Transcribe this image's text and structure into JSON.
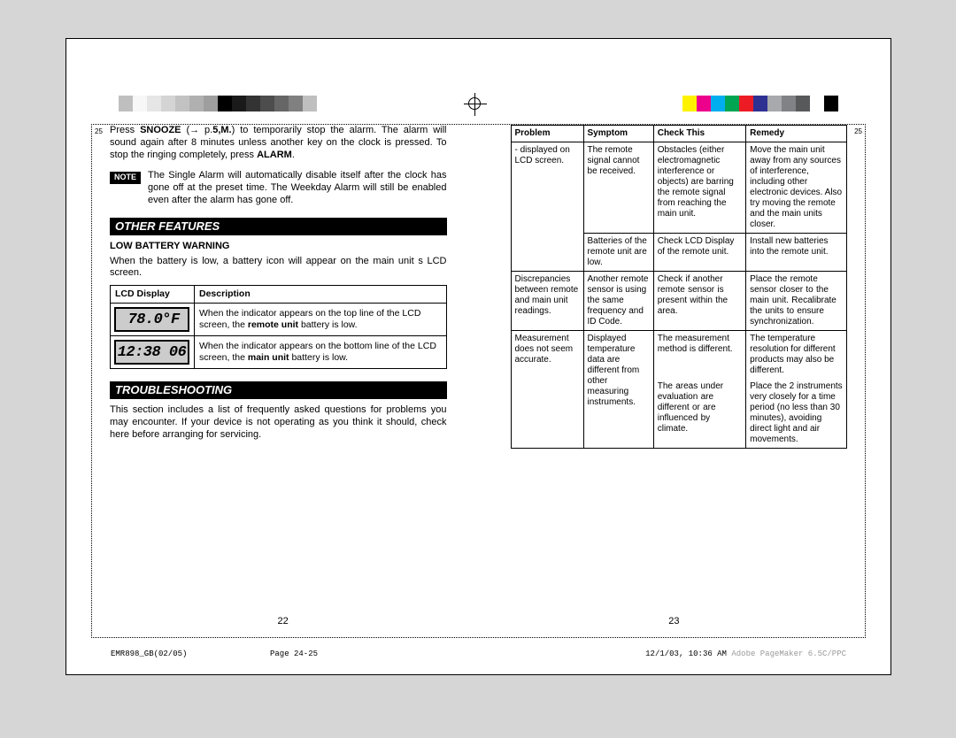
{
  "grayscale_bars": [
    "#bfbfbf",
    "#f7f7f7",
    "#e6e6e6",
    "#d4d4d4",
    "#c2c2c2",
    "#b0b0b0",
    "#9e9e9e",
    "#000000",
    "#1a1a1a",
    "#333333",
    "#4d4d4d",
    "#666666",
    "#808080",
    "#bfbfbf"
  ],
  "color_bars": [
    "#fff200",
    "#ec008c",
    "#00aeef",
    "#00a651",
    "#ed1c24",
    "#2e3192",
    "#a7a9ac",
    "#808285",
    "#58595b",
    "#fff",
    "#000"
  ],
  "left_page": {
    "intro_pre": "Press ",
    "intro_bold1": "SNOOZE",
    "intro_mid1": " (→ p.",
    "intro_bold2": "5,M.",
    "intro_mid2": ") to temporarily stop the alarm. The alarm will sound again after 8 minutes unless another key on the clock is pressed. To stop the ringing completely, press ",
    "intro_bold3": "ALARM",
    "intro_post": ".",
    "note_label": "NOTE",
    "note_text": "The Single Alarm will automatically disable itself after the clock has gone off at the preset time. The Weekday Alarm will still be enabled even after the alarm has gone off.",
    "section1": "OTHER FEATURES",
    "low_bat_head": "LOW BATTERY WARNING",
    "low_bat_text": "When the battery is low, a battery icon will appear on the main unit s LCD screen.",
    "lcd_table": {
      "h1": "LCD Display",
      "h2": "Description",
      "rows": [
        {
          "display": "78.0°F",
          "desc_pre": "When the indicator appears on the top line of the LCD screen, the ",
          "desc_bold": "remote unit",
          "desc_post": " battery is low."
        },
        {
          "display": "12:38 06",
          "desc_pre": "When the indicator appears on the bottom line of the LCD screen, the ",
          "desc_bold": "main unit",
          "desc_post": " battery is low."
        }
      ]
    },
    "section2": "TROUBLESHOOTING",
    "trouble_intro": "This section includes a list of frequently asked questions for problems you may encounter. If your device is not operating as you think it should, check here before arranging for servicing.",
    "pagenum": "22"
  },
  "right_page": {
    "table": {
      "headers": [
        "Problem",
        "Symptom",
        "Check This",
        "Remedy"
      ],
      "rows": [
        {
          "problem": "- displayed on LCD screen.",
          "symptom": "The remote signal cannot be received.",
          "check": "Obstacles (either electromagnetic interference or objects) are barring the remote signal from reaching the main unit.",
          "remedy": "Move the main unit away from any sources of interference, including other electronic devices. Also try moving the remote and the main units closer."
        },
        {
          "problem": "",
          "symptom": "Batteries of the remote unit are low.",
          "check": "Check LCD Display of the remote unit.",
          "remedy": "Install new batteries into the remote unit."
        },
        {
          "problem": "Discrepancies between remote and main unit readings.",
          "symptom": "Another remote sensor is using the same frequency and ID Code.",
          "check": "Check if another remote sensor is present within the area.",
          "remedy": "Place the remote sensor closer to the main unit. Recalibrate the units to ensure synchronization."
        },
        {
          "problem": "Measurement does not seem accurate.",
          "symptom": "Displayed temperature data are different from other measuring instruments.",
          "check_a": "The measurement method is different.",
          "remedy_a": "The temperature resolution for different products may also be different.",
          "check_b": "The areas under evaluation are different or are influenced by climate.",
          "remedy_b": "Place the 2 instruments very closely for a time period (no less than 30 minutes), avoiding direct light and air movements."
        }
      ]
    },
    "pagenum": "23"
  },
  "footer": {
    "left": "EMR898_GB(02/05)",
    "center": "Page 24-25",
    "right_time": "12/1/03, 10:36 AM",
    "right_app": "Adobe PageMaker 6.5C/PPC"
  },
  "side_num": "25"
}
